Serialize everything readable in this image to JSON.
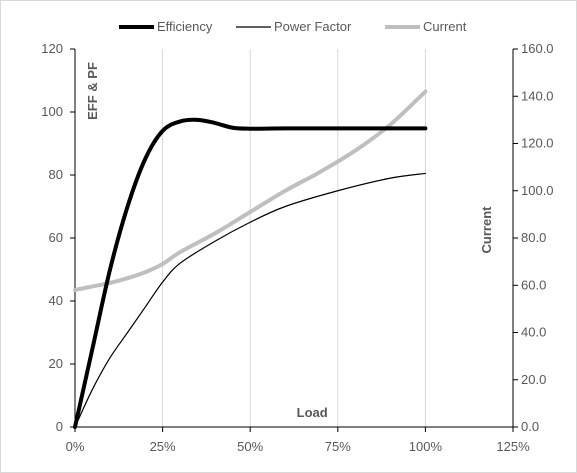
{
  "chart_data": {
    "type": "line",
    "title": "",
    "xlabel": "Load",
    "ylabel": "EFF & PF",
    "y2label": "Current",
    "xlim": [
      0,
      125
    ],
    "ylim": [
      0,
      120
    ],
    "y2lim": [
      0,
      160
    ],
    "x_ticks": [
      "0%",
      "25%",
      "50%",
      "75%",
      "100%",
      "125%"
    ],
    "y_ticks": [
      "0",
      "20",
      "40",
      "60",
      "80",
      "100",
      "120"
    ],
    "y2_ticks": [
      "0.0",
      "20.0",
      "40.0",
      "60.0",
      "80.0",
      "100.0",
      "120.0",
      "140.0",
      "160.0"
    ],
    "grid": "vertical",
    "legend_position": "top",
    "series": [
      {
        "name": "Efficiency",
        "axis": "left",
        "color": "#000000",
        "x": [
          0,
          5,
          10,
          15,
          20,
          25,
          30,
          35,
          40,
          45,
          50,
          60,
          75,
          100
        ],
        "values": [
          0,
          25,
          50,
          70,
          85,
          94,
          97,
          97.5,
          96.5,
          95,
          94.7,
          94.8,
          94.8,
          94.8
        ]
      },
      {
        "name": "Power Factor",
        "axis": "left",
        "color": "#000000",
        "x": [
          0,
          5,
          10,
          15,
          20,
          25,
          30,
          40,
          50,
          60,
          75,
          90,
          100
        ],
        "values": [
          0,
          12,
          22,
          30,
          38,
          46,
          52,
          59,
          65,
          70,
          75,
          79,
          80.5
        ]
      },
      {
        "name": "Current",
        "axis": "right",
        "color": "#bfbfbf",
        "x": [
          0,
          5,
          10,
          15,
          20,
          25,
          30,
          40,
          50,
          60,
          70,
          80,
          90,
          100
        ],
        "values": [
          58,
          59.5,
          61,
          63,
          65.5,
          69,
          74,
          82,
          91,
          100,
          108,
          117,
          128,
          142
        ]
      }
    ]
  }
}
